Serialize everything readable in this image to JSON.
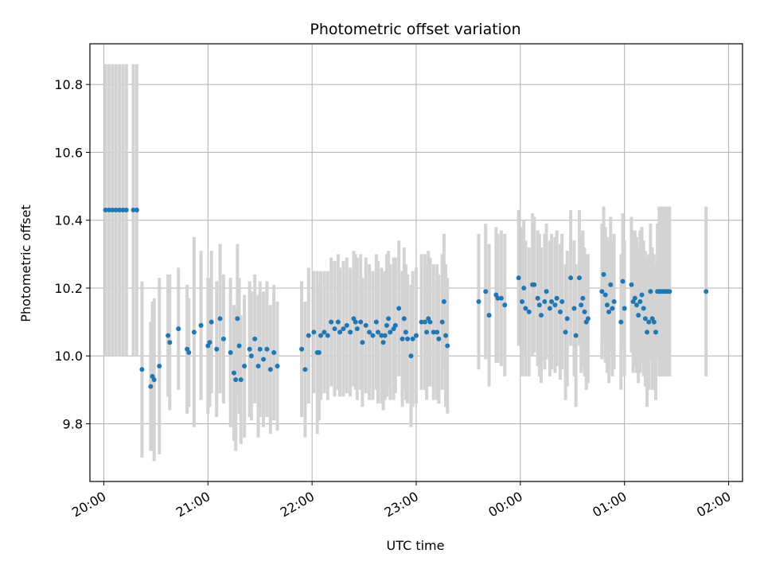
{
  "chart_data": {
    "type": "scatter",
    "title": "Photometric offset variation",
    "xlabel": "UTC time",
    "ylabel": "Photometric offset",
    "x_unit": "UTC time (HH:MM)",
    "x_ticks": [
      "20:00",
      "21:00",
      "22:00",
      "23:00",
      "00:00",
      "01:00",
      "02:00"
    ],
    "y_ticks": [
      "9.8",
      "10.0",
      "10.2",
      "10.4",
      "10.6",
      "10.8"
    ],
    "xlim": [
      "19:52",
      "02:08"
    ],
    "ylim": [
      9.63,
      10.92
    ],
    "grid": true,
    "errorbar_color": "#d3d3d3",
    "marker_color": "#1f77b4",
    "series": [
      {
        "points": [
          {
            "x": "20:01",
            "y": 10.43,
            "err": 0.43
          },
          {
            "x": "20:03",
            "y": 10.43,
            "err": 0.43
          },
          {
            "x": "20:05",
            "y": 10.43,
            "err": 0.43
          },
          {
            "x": "20:07",
            "y": 10.43,
            "err": 0.43
          },
          {
            "x": "20:09",
            "y": 10.43,
            "err": 0.43
          },
          {
            "x": "20:11",
            "y": 10.43,
            "err": 0.43
          },
          {
            "x": "20:13",
            "y": 10.43,
            "err": 0.43
          },
          {
            "x": "20:17",
            "y": 10.43,
            "err": 0.43
          },
          {
            "x": "20:19",
            "y": 10.43,
            "err": 0.43
          },
          {
            "x": "20:22",
            "y": 9.96,
            "err": 0.26
          },
          {
            "x": "20:27",
            "y": 9.91,
            "err": 0.19
          },
          {
            "x": "20:28",
            "y": 9.94,
            "err": 0.22
          },
          {
            "x": "20:29",
            "y": 9.93,
            "err": 0.24
          },
          {
            "x": "20:32",
            "y": 9.97,
            "err": 0.26
          },
          {
            "x": "20:37",
            "y": 10.06,
            "err": 0.18
          },
          {
            "x": "20:38",
            "y": 10.04,
            "err": 0.2
          },
          {
            "x": "20:43",
            "y": 10.08,
            "err": 0.18
          },
          {
            "x": "20:48",
            "y": 10.02,
            "err": 0.19
          },
          {
            "x": "20:49",
            "y": 10.01,
            "err": 0.16
          },
          {
            "x": "20:52",
            "y": 10.07,
            "err": 0.28
          },
          {
            "x": "20:56",
            "y": 10.09,
            "err": 0.22
          },
          {
            "x": "21:00",
            "y": 10.03,
            "err": 0.2
          },
          {
            "x": "21:01",
            "y": 10.04,
            "err": 0.19
          },
          {
            "x": "21:02",
            "y": 10.1,
            "err": 0.21
          },
          {
            "x": "21:05",
            "y": 10.02,
            "err": 0.2
          },
          {
            "x": "21:07",
            "y": 10.11,
            "err": 0.22
          },
          {
            "x": "21:09",
            "y": 10.05,
            "err": 0.19
          },
          {
            "x": "21:13",
            "y": 10.01,
            "err": 0.22
          },
          {
            "x": "21:15",
            "y": 9.95,
            "err": 0.2
          },
          {
            "x": "21:16",
            "y": 9.93,
            "err": 0.21
          },
          {
            "x": "21:17",
            "y": 10.11,
            "err": 0.22
          },
          {
            "x": "21:18",
            "y": 10.03,
            "err": 0.2
          },
          {
            "x": "21:19",
            "y": 9.93,
            "err": 0.19
          },
          {
            "x": "21:21",
            "y": 9.97,
            "err": 0.21
          },
          {
            "x": "21:24",
            "y": 10.02,
            "err": 0.2
          },
          {
            "x": "21:25",
            "y": 10.0,
            "err": 0.19
          },
          {
            "x": "21:27",
            "y": 10.05,
            "err": 0.19
          },
          {
            "x": "21:29",
            "y": 9.97,
            "err": 0.21
          },
          {
            "x": "21:30",
            "y": 10.02,
            "err": 0.2
          },
          {
            "x": "21:32",
            "y": 9.99,
            "err": 0.2
          },
          {
            "x": "21:34",
            "y": 10.02,
            "err": 0.2
          },
          {
            "x": "21:36",
            "y": 9.96,
            "err": 0.19
          },
          {
            "x": "21:38",
            "y": 10.01,
            "err": 0.2
          },
          {
            "x": "21:40",
            "y": 9.97,
            "err": 0.19
          },
          {
            "x": "21:54",
            "y": 10.02,
            "err": 0.2
          },
          {
            "x": "21:56",
            "y": 9.96,
            "err": 0.2
          },
          {
            "x": "21:58",
            "y": 10.06,
            "err": 0.2
          },
          {
            "x": "22:01",
            "y": 10.07,
            "err": 0.18
          },
          {
            "x": "22:03",
            "y": 10.01,
            "err": 0.24
          },
          {
            "x": "22:04",
            "y": 10.01,
            "err": 0.2
          },
          {
            "x": "22:05",
            "y": 10.06,
            "err": 0.19
          },
          {
            "x": "22:07",
            "y": 10.07,
            "err": 0.18
          },
          {
            "x": "22:09",
            "y": 10.06,
            "err": 0.19
          },
          {
            "x": "22:11",
            "y": 10.1,
            "err": 0.19
          },
          {
            "x": "22:13",
            "y": 10.08,
            "err": 0.2
          },
          {
            "x": "22:15",
            "y": 10.1,
            "err": 0.2
          },
          {
            "x": "22:16",
            "y": 10.07,
            "err": 0.19
          },
          {
            "x": "22:18",
            "y": 10.08,
            "err": 0.2
          },
          {
            "x": "22:20",
            "y": 10.09,
            "err": 0.2
          },
          {
            "x": "22:22",
            "y": 10.07,
            "err": 0.19
          },
          {
            "x": "22:24",
            "y": 10.11,
            "err": 0.2
          },
          {
            "x": "22:25",
            "y": 10.1,
            "err": 0.2
          },
          {
            "x": "22:26",
            "y": 10.08,
            "err": 0.21
          },
          {
            "x": "22:28",
            "y": 10.1,
            "err": 0.2
          },
          {
            "x": "22:29",
            "y": 10.04,
            "err": 0.19
          },
          {
            "x": "22:31",
            "y": 10.09,
            "err": 0.2
          },
          {
            "x": "22:33",
            "y": 10.07,
            "err": 0.2
          },
          {
            "x": "22:35",
            "y": 10.06,
            "err": 0.19
          },
          {
            "x": "22:37",
            "y": 10.1,
            "err": 0.2
          },
          {
            "x": "22:38",
            "y": 10.07,
            "err": 0.21
          },
          {
            "x": "22:40",
            "y": 10.06,
            "err": 0.2
          },
          {
            "x": "22:41",
            "y": 10.04,
            "err": 0.2
          },
          {
            "x": "22:42",
            "y": 10.06,
            "err": 0.19
          },
          {
            "x": "22:43",
            "y": 10.09,
            "err": 0.21
          },
          {
            "x": "22:44",
            "y": 10.11,
            "err": 0.2
          },
          {
            "x": "22:45",
            "y": 10.07,
            "err": 0.2
          },
          {
            "x": "22:47",
            "y": 10.08,
            "err": 0.21
          },
          {
            "x": "22:48",
            "y": 10.09,
            "err": 0.2
          },
          {
            "x": "22:50",
            "y": 10.14,
            "err": 0.2
          },
          {
            "x": "22:52",
            "y": 10.05,
            "err": 0.2
          },
          {
            "x": "22:53",
            "y": 10.11,
            "err": 0.21
          },
          {
            "x": "22:54",
            "y": 10.07,
            "err": 0.2
          },
          {
            "x": "22:55",
            "y": 10.05,
            "err": 0.19
          },
          {
            "x": "22:57",
            "y": 10.0,
            "err": 0.21
          },
          {
            "x": "22:58",
            "y": 10.05,
            "err": 0.2
          },
          {
            "x": "23:00",
            "y": 10.06,
            "err": 0.2
          },
          {
            "x": "23:03",
            "y": 10.1,
            "err": 0.2
          },
          {
            "x": "23:05",
            "y": 10.1,
            "err": 0.2
          },
          {
            "x": "23:06",
            "y": 10.07,
            "err": 0.2
          },
          {
            "x": "23:07",
            "y": 10.11,
            "err": 0.2
          },
          {
            "x": "23:08",
            "y": 10.1,
            "err": 0.19
          },
          {
            "x": "23:10",
            "y": 10.07,
            "err": 0.2
          },
          {
            "x": "23:12",
            "y": 10.07,
            "err": 0.2
          },
          {
            "x": "23:13",
            "y": 10.05,
            "err": 0.19
          },
          {
            "x": "23:15",
            "y": 10.1,
            "err": 0.2
          },
          {
            "x": "23:16",
            "y": 10.16,
            "err": 0.2
          },
          {
            "x": "23:17",
            "y": 10.06,
            "err": 0.21
          },
          {
            "x": "23:18",
            "y": 10.03,
            "err": 0.2
          },
          {
            "x": "23:36",
            "y": 10.16,
            "err": 0.2
          },
          {
            "x": "23:40",
            "y": 10.19,
            "err": 0.2
          },
          {
            "x": "23:42",
            "y": 10.12,
            "err": 0.21
          },
          {
            "x": "23:46",
            "y": 10.18,
            "err": 0.2
          },
          {
            "x": "23:47",
            "y": 10.17,
            "err": 0.19
          },
          {
            "x": "23:49",
            "y": 10.17,
            "err": 0.2
          },
          {
            "x": "23:51",
            "y": 10.15,
            "err": 0.21
          },
          {
            "x": "23:59",
            "y": 10.23,
            "err": 0.2
          },
          {
            "x": "00:01",
            "y": 10.16,
            "err": 0.22
          },
          {
            "x": "00:02",
            "y": 10.2,
            "err": 0.2
          },
          {
            "x": "00:03",
            "y": 10.14,
            "err": 0.2
          },
          {
            "x": "00:05",
            "y": 10.13,
            "err": 0.19
          },
          {
            "x": "00:07",
            "y": 10.21,
            "err": 0.21
          },
          {
            "x": "00:08",
            "y": 10.21,
            "err": 0.2
          },
          {
            "x": "00:10",
            "y": 10.17,
            "err": 0.2
          },
          {
            "x": "00:11",
            "y": 10.15,
            "err": 0.21
          },
          {
            "x": "00:12",
            "y": 10.12,
            "err": 0.2
          },
          {
            "x": "00:14",
            "y": 10.16,
            "err": 0.2
          },
          {
            "x": "00:15",
            "y": 10.19,
            "err": 0.2
          },
          {
            "x": "00:17",
            "y": 10.14,
            "err": 0.2
          },
          {
            "x": "00:18",
            "y": 10.16,
            "err": 0.2
          },
          {
            "x": "00:20",
            "y": 10.15,
            "err": 0.2
          },
          {
            "x": "00:21",
            "y": 10.17,
            "err": 0.2
          },
          {
            "x": "00:23",
            "y": 10.13,
            "err": 0.2
          },
          {
            "x": "00:24",
            "y": 10.16,
            "err": 0.2
          },
          {
            "x": "00:26",
            "y": 10.07,
            "err": 0.2
          },
          {
            "x": "00:27",
            "y": 10.11,
            "err": 0.2
          },
          {
            "x": "00:29",
            "y": 10.23,
            "err": 0.2
          },
          {
            "x": "00:31",
            "y": 10.14,
            "err": 0.2
          },
          {
            "x": "00:32",
            "y": 10.06,
            "err": 0.21
          },
          {
            "x": "00:34",
            "y": 10.23,
            "err": 0.2
          },
          {
            "x": "00:35",
            "y": 10.15,
            "err": 0.2
          },
          {
            "x": "00:36",
            "y": 10.17,
            "err": 0.2
          },
          {
            "x": "00:37",
            "y": 10.13,
            "err": 0.19
          },
          {
            "x": "00:38",
            "y": 10.1,
            "err": 0.2
          },
          {
            "x": "00:39",
            "y": 10.11,
            "err": 0.19
          },
          {
            "x": "00:47",
            "y": 10.19,
            "err": 0.2
          },
          {
            "x": "00:48",
            "y": 10.24,
            "err": 0.2
          },
          {
            "x": "00:49",
            "y": 10.18,
            "err": 0.2
          },
          {
            "x": "00:50",
            "y": 10.15,
            "err": 0.2
          },
          {
            "x": "00:51",
            "y": 10.13,
            "err": 0.21
          },
          {
            "x": "00:52",
            "y": 10.21,
            "err": 0.2
          },
          {
            "x": "00:53",
            "y": 10.14,
            "err": 0.2
          },
          {
            "x": "00:54",
            "y": 10.16,
            "err": 0.2
          },
          {
            "x": "00:58",
            "y": 10.1,
            "err": 0.2
          },
          {
            "x": "00:59",
            "y": 10.22,
            "err": 0.2
          },
          {
            "x": "01:00",
            "y": 10.14,
            "err": 0.2
          },
          {
            "x": "01:04",
            "y": 10.21,
            "err": 0.2
          },
          {
            "x": "01:05",
            "y": 10.16,
            "err": 0.21
          },
          {
            "x": "01:06",
            "y": 10.17,
            "err": 0.2
          },
          {
            "x": "01:07",
            "y": 10.15,
            "err": 0.2
          },
          {
            "x": "01:08",
            "y": 10.12,
            "err": 0.2
          },
          {
            "x": "01:09",
            "y": 10.16,
            "err": 0.21
          },
          {
            "x": "01:10",
            "y": 10.18,
            "err": 0.2
          },
          {
            "x": "01:11",
            "y": 10.14,
            "err": 0.2
          },
          {
            "x": "01:12",
            "y": 10.11,
            "err": 0.2
          },
          {
            "x": "01:13",
            "y": 10.07,
            "err": 0.22
          },
          {
            "x": "01:14",
            "y": 10.1,
            "err": 0.2
          },
          {
            "x": "01:15",
            "y": 10.19,
            "err": 0.2
          },
          {
            "x": "01:16",
            "y": 10.11,
            "err": 0.21
          },
          {
            "x": "01:17",
            "y": 10.1,
            "err": 0.2
          },
          {
            "x": "01:18",
            "y": 10.07,
            "err": 0.2
          },
          {
            "x": "01:19",
            "y": 10.19,
            "err": 0.2
          },
          {
            "x": "01:20",
            "y": 10.19,
            "err": 0.25
          },
          {
            "x": "01:21",
            "y": 10.19,
            "err": 0.25
          },
          {
            "x": "01:22",
            "y": 10.19,
            "err": 0.25
          },
          {
            "x": "01:23",
            "y": 10.19,
            "err": 0.25
          },
          {
            "x": "01:24",
            "y": 10.19,
            "err": 0.25
          },
          {
            "x": "01:25",
            "y": 10.19,
            "err": 0.25
          },
          {
            "x": "01:26",
            "y": 10.19,
            "err": 0.25
          },
          {
            "x": "01:47",
            "y": 10.19,
            "err": 0.25
          }
        ]
      }
    ]
  }
}
